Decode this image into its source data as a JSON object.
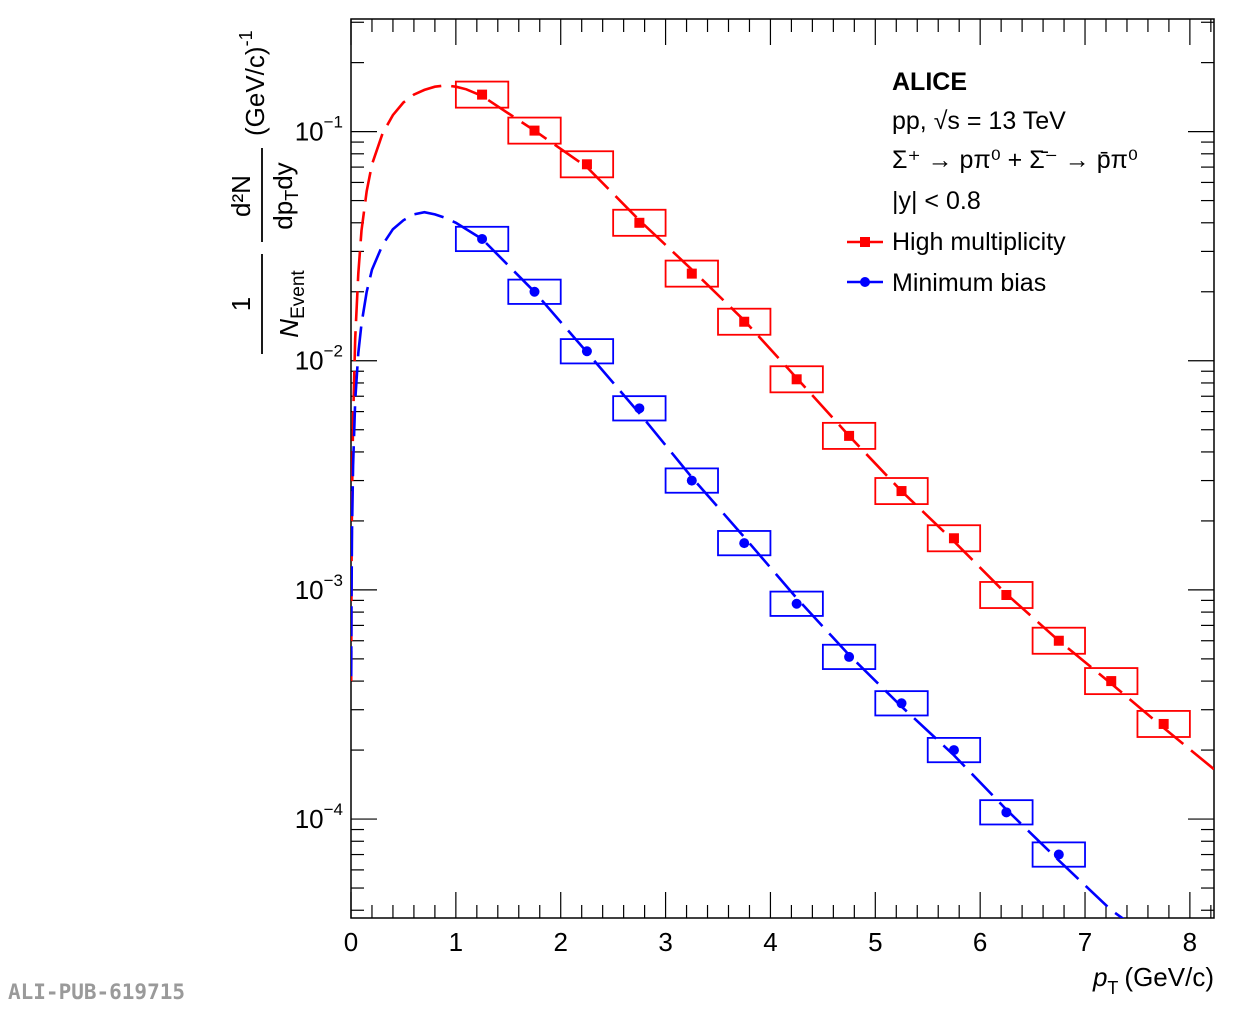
{
  "watermark": "ALI-PUB-619715",
  "chart_data": {
    "type": "scatter",
    "x_label": {
      "var": "p",
      "sub": "T",
      "unit": "(GeV/c)"
    },
    "y_label": {
      "numerator_one": "1",
      "numerator_d2n": "d²N",
      "denom_event": "N",
      "denom_event_sub": "Event",
      "denom_dpt": "dp",
      "denom_dpt_sub": "T",
      "denom_dy": "dy",
      "unit": "(GeV/c)",
      "unit_exp": "-1"
    },
    "xlim": [
      0,
      8.23
    ],
    "ylim": [
      3.7e-05,
      0.31
    ],
    "y_scale": "log",
    "x_ticks": [
      0,
      1,
      2,
      3,
      4,
      5,
      6,
      7,
      8
    ],
    "x_tick_labels": [
      "0",
      "1",
      "2",
      "3",
      "4",
      "5",
      "6",
      "7",
      "8"
    ],
    "y_ticks": [
      0.1,
      0.01,
      0.001,
      0.0001
    ],
    "y_tick_labels": [
      {
        "base": "10",
        "exp": "−1"
      },
      {
        "base": "10",
        "exp": "−2"
      },
      {
        "base": "10",
        "exp": "−3"
      },
      {
        "base": "10",
        "exp": "−4"
      }
    ],
    "annotations": {
      "experiment": "ALICE",
      "system": "pp, √s = 13 TeV",
      "decay": "Σ⁺ → pπ⁰ + Σ̄⁻ → p̄π⁰",
      "rapidity": "|y| < 0.8"
    },
    "legend_position": "top-right",
    "series": [
      {
        "name": "High multiplicity",
        "color": "#ff0000",
        "marker": "square",
        "x": [
          1.25,
          1.75,
          2.25,
          2.75,
          3.25,
          3.75,
          4.25,
          4.75,
          5.25,
          5.75,
          6.25,
          6.75,
          7.25,
          7.75
        ],
        "y": [
          0.145,
          0.101,
          0.072,
          0.04,
          0.024,
          0.0148,
          0.0083,
          0.0047,
          0.0027,
          0.00168,
          0.00095,
          0.0006,
          0.0004,
          0.00026
        ],
        "syst_half_width_x": 0.25,
        "syst_rel": 0.14,
        "fit_x": [
          0.002,
          0.005,
          0.01,
          0.02,
          0.04,
          0.07,
          0.1,
          0.15,
          0.2,
          0.3,
          0.4,
          0.5,
          0.6,
          0.7,
          0.8,
          0.9,
          1.0,
          1.1,
          1.25,
          1.75,
          2.25,
          2.75,
          3.25,
          3.75,
          4.25,
          4.75,
          5.25,
          5.75,
          6.25,
          6.75,
          7.25,
          7.75,
          8.23
        ],
        "fit_y": [
          0.0004,
          0.0012,
          0.0025,
          0.0055,
          0.0125,
          0.024,
          0.037,
          0.055,
          0.072,
          0.098,
          0.118,
          0.134,
          0.145,
          0.152,
          0.157,
          0.159,
          0.157,
          0.153,
          0.143,
          0.101,
          0.07,
          0.041,
          0.025,
          0.015,
          0.0084,
          0.0047,
          0.0027,
          0.00163,
          0.00096,
          0.0006,
          0.00039,
          0.00025,
          0.000165
        ]
      },
      {
        "name": "Minimum bias",
        "color": "#0000ff",
        "marker": "circle",
        "x": [
          1.25,
          1.75,
          2.25,
          2.75,
          3.25,
          3.75,
          4.25,
          4.75,
          5.25,
          5.75,
          6.25,
          6.75
        ],
        "y": [
          0.034,
          0.02,
          0.011,
          0.0062,
          0.003,
          0.0016,
          0.00087,
          0.00051,
          0.00032,
          0.0002,
          0.000107,
          7e-05
        ],
        "syst_half_width_x": 0.25,
        "syst_rel": 0.13,
        "fit_x": [
          0.002,
          0.005,
          0.01,
          0.02,
          0.04,
          0.07,
          0.1,
          0.15,
          0.2,
          0.3,
          0.4,
          0.5,
          0.6,
          0.7,
          0.8,
          0.9,
          1.0,
          1.25,
          1.75,
          2.25,
          2.75,
          3.25,
          3.75,
          4.25,
          4.75,
          5.25,
          5.75,
          6.25,
          6.75,
          7.25,
          7.59
        ],
        "fit_y": [
          0.00042,
          0.0009,
          0.0018,
          0.0035,
          0.0067,
          0.0108,
          0.0145,
          0.02,
          0.025,
          0.032,
          0.0375,
          0.041,
          0.0435,
          0.0445,
          0.0435,
          0.042,
          0.04,
          0.034,
          0.02,
          0.0109,
          0.0059,
          0.0031,
          0.0017,
          0.00092,
          0.00052,
          0.00031,
          0.00019,
          0.00011,
          6.6e-05,
          4e-05,
          3.1e-05
        ]
      }
    ]
  }
}
